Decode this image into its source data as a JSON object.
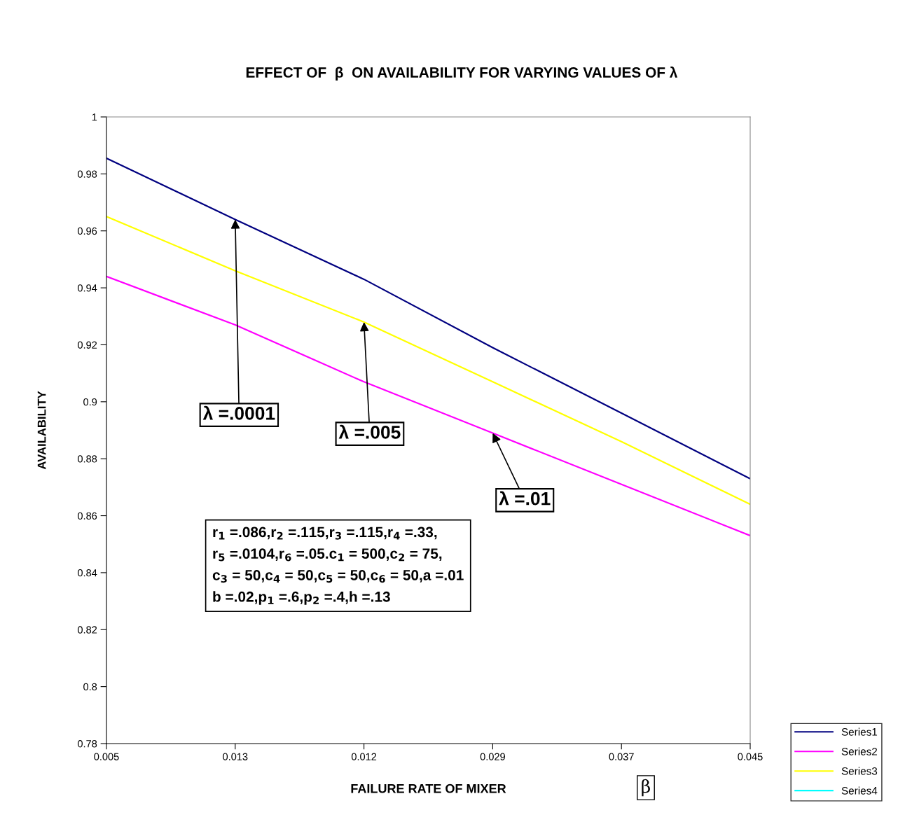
{
  "chart_data": {
    "type": "line",
    "title": "EFFECT OF  β  ON AVAILABILITY FOR VARYING VALUES OF λ",
    "xlabel": "FAILURE RATE OF MIXER",
    "ylabel": "AVAILABILITY",
    "categories": [
      "0.005",
      "0.013",
      "0.012",
      "0.029",
      "0.037",
      "0.045"
    ],
    "series": [
      {
        "name": "Series1",
        "color": "#000080",
        "values": [
          0.9855,
          0.964,
          0.943,
          0.919,
          0.896,
          0.873
        ]
      },
      {
        "name": "Series2",
        "color": "#ff00ff",
        "values": [
          0.944,
          0.927,
          0.907,
          0.889,
          0.871,
          0.853
        ]
      },
      {
        "name": "Series3",
        "color": "#ffff00",
        "values": [
          0.965,
          0.946,
          0.928,
          0.907,
          0.886,
          0.864
        ]
      },
      {
        "name": "Series4",
        "color": "#00ffff",
        "values": [
          null,
          null,
          null,
          null,
          null,
          null
        ]
      }
    ],
    "ylim": [
      0.78,
      1
    ],
    "yticks": [
      0.78,
      0.8,
      0.82,
      0.84,
      0.86,
      0.88,
      0.9,
      0.92,
      0.94,
      0.96,
      0.98,
      1
    ],
    "grid": false,
    "legend": "bottom right",
    "marker": "none",
    "line_style": "solid",
    "annotations": [
      {
        "text": "λ =.0001",
        "x": "0.013",
        "y": 0.964
      },
      {
        "text": "λ =.005",
        "x": "0.012",
        "y": 0.928
      },
      {
        "text": "λ =.01",
        "x": "0.029",
        "y": 0.889
      },
      "r$_{1}$ =.086,r$_{2}$ =.115,r$_{3}$ =.115,r$_{4}$ =.33,\nr$_{5}$ =.0104,r$_{6}$ =.05.c$_{1}$ = 500,c$_{2}$ = 75,\nc$_{3}$ = 50,c$_{4}$ = 50,c$_{5}$ = 50,c$_{6}$ = 50,a =.01\nb =.02,p$_{1}$ =.6,p$_{2}$ =.4,h =.13",
      "β"
    ]
  }
}
